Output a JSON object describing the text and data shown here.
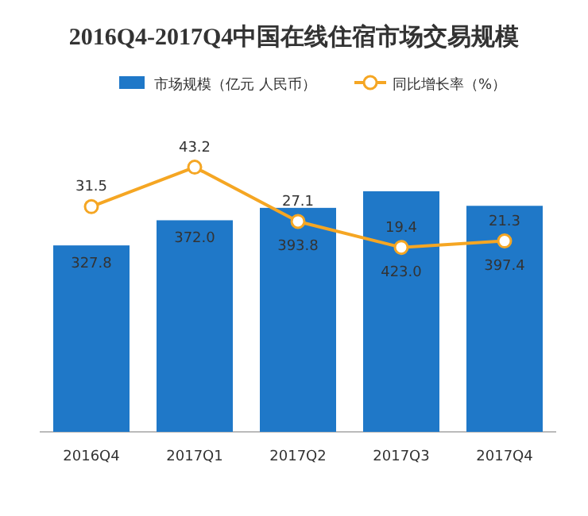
{
  "chart_data": {
    "type": "bar",
    "title": "2016Q4-2017Q4中国在线住宿市场交易规模",
    "categories": [
      "2016Q4",
      "2017Q1",
      "2017Q2",
      "2017Q3",
      "2017Q4"
    ],
    "series": [
      {
        "name": "市场规模（亿元 人民币）",
        "color": "#1f78c8",
        "values": [
          327.8,
          372.0,
          393.8,
          423.0,
          397.4
        ],
        "value_labels": [
          "327.8",
          "372.0",
          "393.8",
          "423.0",
          "397.4"
        ]
      },
      {
        "name": "同比增长率（%）",
        "type": "line",
        "axis": "y2",
        "color": "#f5a623",
        "marker": "circle",
        "values": [
          31.5,
          43.2,
          27.1,
          19.4,
          21.3
        ]
      }
    ],
    "data_labels": true,
    "legend": "top",
    "grid": false,
    "tick_labels": "x"
  }
}
